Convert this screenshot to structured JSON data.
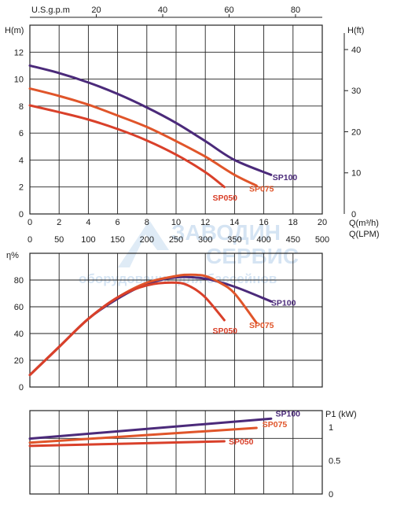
{
  "colors": {
    "SP100": "#4b2a7a",
    "SP075": "#e0552a",
    "SP050": "#d9402a",
    "watermark": "#1f6fbf"
  },
  "watermark": {
    "line1": "ЗАВОДИН",
    "line2": "СЕРВИС",
    "line3": "оборудование для бассейнов"
  },
  "chart_data": [
    {
      "type": "line",
      "ylabel": "H(m)",
      "ylabel_right": "H(ft)",
      "xlabel": "Q(m³/h)",
      "xlabel_lpm": "Q(LPM)",
      "xlabel_top": "U.S.g.p.m",
      "xlim": [
        0,
        20
      ],
      "ylim": [
        0,
        14
      ],
      "grid": true,
      "x_ticks": [
        "0",
        "2",
        "4",
        "6",
        "8",
        "10",
        "12",
        "14",
        "16",
        "18",
        "20"
      ],
      "lpm_ticks": [
        "0",
        "50",
        "100",
        "150",
        "200",
        "250",
        "300",
        "350",
        "400",
        "450",
        "500"
      ],
      "gpm_ticks": [
        "20",
        "40",
        "60",
        "80"
      ],
      "y_ticks": [
        "0",
        "2",
        "4",
        "6",
        "8",
        "10",
        "12"
      ],
      "ft_ticks": [
        "0",
        "10",
        "20",
        "30",
        "40"
      ],
      "series": [
        {
          "name": "SP100",
          "x": [
            0,
            2,
            4,
            6,
            8,
            10,
            12,
            14,
            16.5
          ],
          "y": [
            11.0,
            10.45,
            9.75,
            8.9,
            7.9,
            6.75,
            5.4,
            4.0,
            2.9
          ]
        },
        {
          "name": "SP075",
          "x": [
            0,
            2,
            4,
            6,
            8,
            10,
            12,
            14,
            15.5
          ],
          "y": [
            9.3,
            8.75,
            8.1,
            7.3,
            6.45,
            5.4,
            4.25,
            2.9,
            2.1
          ]
        },
        {
          "name": "SP050",
          "x": [
            0,
            2,
            4,
            6,
            8,
            10,
            12,
            13.3
          ],
          "y": [
            8.05,
            7.55,
            7.0,
            6.3,
            5.45,
            4.4,
            3.1,
            2.0
          ]
        }
      ]
    },
    {
      "type": "line",
      "ylabel": "η%",
      "xlim": [
        0,
        20
      ],
      "ylim": [
        0,
        100
      ],
      "grid": true,
      "y_ticks": [
        "0",
        "20",
        "40",
        "60",
        "80"
      ],
      "series": [
        {
          "name": "SP100",
          "x": [
            0,
            2,
            4,
            6,
            8,
            10,
            12,
            14,
            16.5
          ],
          "y": [
            9,
            30,
            51,
            66,
            77,
            82,
            81,
            75,
            64
          ]
        },
        {
          "name": "SP075",
          "x": [
            0,
            2,
            4,
            6,
            8,
            10,
            11,
            12,
            13,
            14,
            15.5
          ],
          "y": [
            9,
            30,
            51,
            67,
            78,
            83,
            84,
            83,
            78,
            70,
            48
          ]
        },
        {
          "name": "SP050",
          "x": [
            0,
            2,
            4,
            6,
            8,
            10,
            11,
            12,
            13.3
          ],
          "y": [
            9,
            30,
            51,
            67,
            76,
            78,
            75,
            67,
            50
          ]
        }
      ]
    },
    {
      "type": "line",
      "ylabel": "P1 (kW)",
      "xlim": [
        0,
        20
      ],
      "ylim": [
        0,
        1.25
      ],
      "grid": true,
      "y_ticks": [
        "0",
        "0.5",
        "1"
      ],
      "series": [
        {
          "name": "SP100",
          "x": [
            0,
            16.5
          ],
          "y": [
            0.83,
            1.13
          ]
        },
        {
          "name": "SP075",
          "x": [
            0,
            15.5
          ],
          "y": [
            0.77,
            0.99
          ]
        },
        {
          "name": "SP050",
          "x": [
            0,
            13.3
          ],
          "y": [
            0.72,
            0.79
          ]
        }
      ]
    }
  ]
}
